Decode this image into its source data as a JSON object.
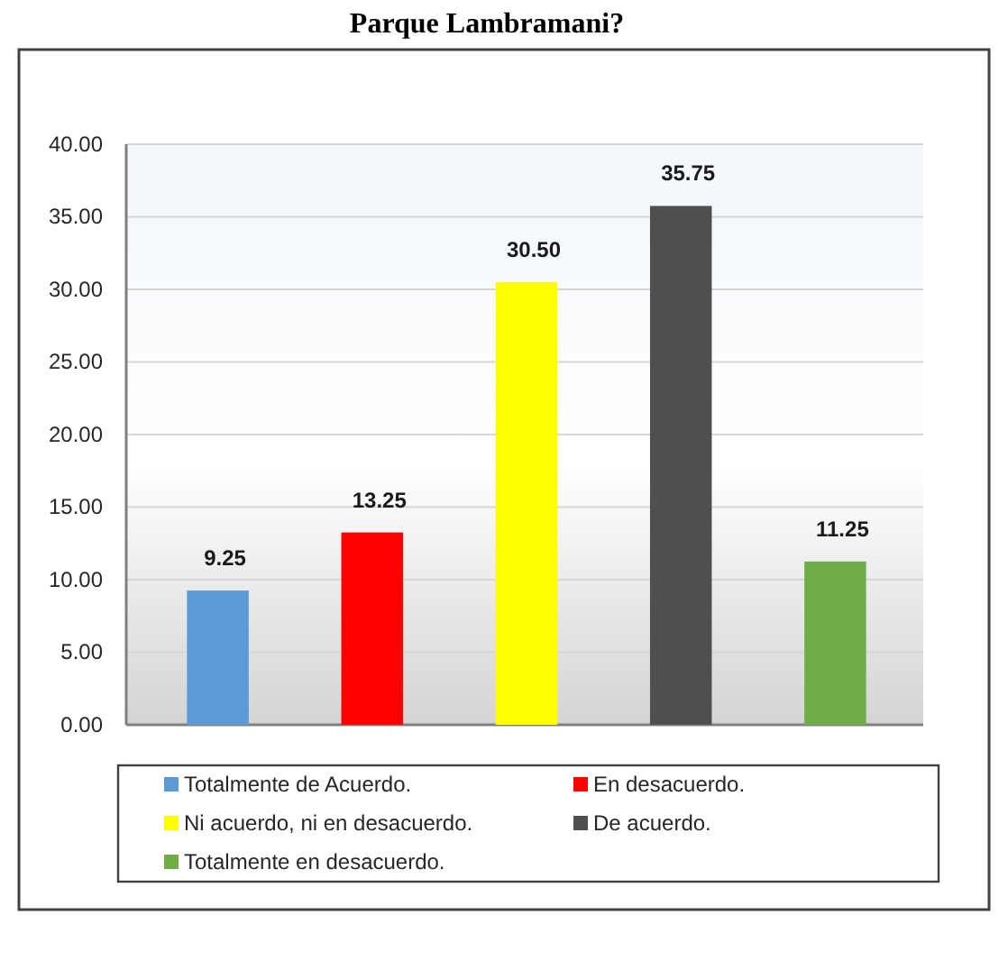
{
  "chart_data": {
    "type": "bar",
    "title": "Parque Lambramani?",
    "categories": [
      null,
      null,
      null,
      null,
      null
    ],
    "series": [
      {
        "name": "Totalmente de Acuerdo.",
        "color": "#5b9bd5",
        "values": [
          9.25,
          null,
          null,
          null,
          null
        ],
        "value_labels": [
          "9.25",
          null,
          null,
          null,
          null
        ]
      },
      {
        "name": "En desacuerdo.",
        "color": "#ff0000",
        "values": [
          null,
          13.25,
          null,
          null,
          null
        ],
        "value_labels": [
          null,
          "13.25",
          null,
          null,
          null
        ]
      },
      {
        "name": "Ni acuerdo, ni en desacuerdo.",
        "color": "#ffff00",
        "values": [
          null,
          null,
          30.5,
          null,
          null
        ],
        "value_labels": [
          null,
          null,
          "30.50",
          null,
          null
        ]
      },
      {
        "name": "De acuerdo.",
        "color": "#4f4f4f",
        "values": [
          null,
          null,
          null,
          35.75,
          null
        ],
        "value_labels": [
          null,
          null,
          null,
          "35.75",
          null
        ]
      },
      {
        "name": "Totalmente en desacuerdo.",
        "color": "#70ad47",
        "values": [
          null,
          null,
          null,
          null,
          11.25
        ],
        "value_labels": [
          null,
          null,
          null,
          null,
          "11.25"
        ]
      }
    ],
    "ylim": [
      0,
      40
    ],
    "yticks": [
      {
        "value": 0,
        "label": "0.00"
      },
      {
        "value": 5,
        "label": "5.00"
      },
      {
        "value": 10,
        "label": "10.00"
      },
      {
        "value": 15,
        "label": "15.00"
      },
      {
        "value": 20,
        "label": "20.00"
      },
      {
        "value": 25,
        "label": "25.00"
      },
      {
        "value": 30,
        "label": "30.00"
      },
      {
        "value": 35,
        "label": "35.00"
      },
      {
        "value": 40,
        "label": "40.00"
      }
    ],
    "grid": "y",
    "legend": "bottom"
  }
}
